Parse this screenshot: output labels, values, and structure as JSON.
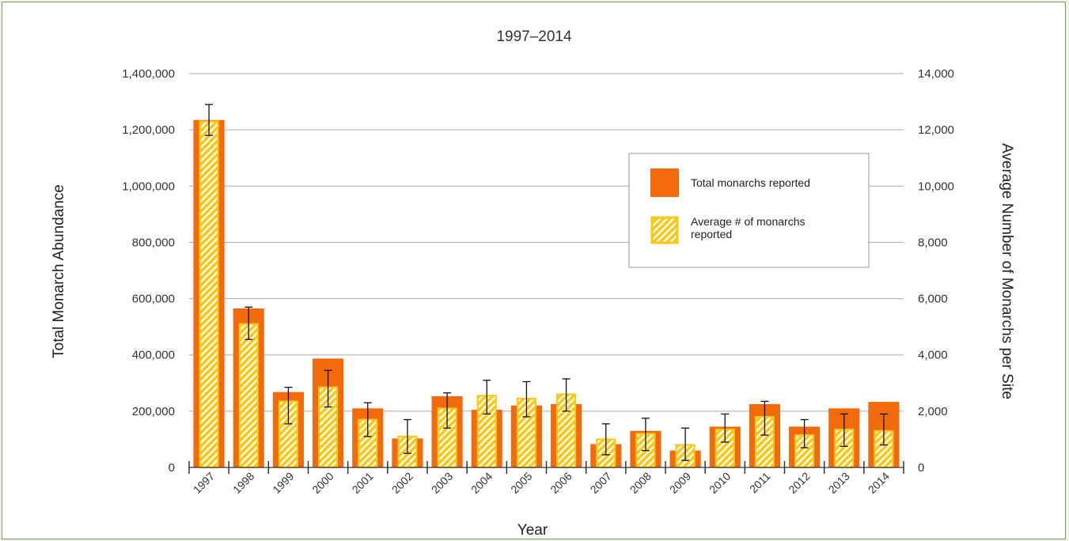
{
  "chart_data": {
    "type": "bar",
    "title": "1997–2014",
    "xlabel": "Year",
    "ylabel": "Total Monarch Abundance",
    "y2label": "Average Number of Monarchs per Site",
    "categories": [
      "1997",
      "1998",
      "1999",
      "2000",
      "2001",
      "2002",
      "2003",
      "2004",
      "2005",
      "2006",
      "2007",
      "2008",
      "2009",
      "2010",
      "2011",
      "2012",
      "2013",
      "2014"
    ],
    "ylim": [
      0,
      1400000
    ],
    "y2lim": [
      0,
      14000
    ],
    "yticks": [
      "0",
      "200,000",
      "400,000",
      "600,000",
      "800,000",
      "1,000,000",
      "1,200,000",
      "1,400,000"
    ],
    "y2ticks": [
      "0",
      "2,000",
      "4,000",
      "6,000",
      "8,000",
      "10,000",
      "12,000",
      "14,000"
    ],
    "grid": true,
    "legend_position": "top-right",
    "series": [
      {
        "name": "Total monarchs reported",
        "axis": "left",
        "color": "#f26a0a",
        "values": [
          1235000,
          565000,
          268000,
          387000,
          210000,
          103000,
          253000,
          205000,
          220000,
          225000,
          83000,
          130000,
          60000,
          145000,
          225000,
          145000,
          210000,
          233000
        ]
      },
      {
        "name": "Average # of monarchs reported",
        "axis": "right",
        "color": "#fbc710",
        "pattern": "hatched",
        "values": [
          12300,
          5100,
          2350,
          2850,
          1700,
          1100,
          2100,
          2550,
          2450,
          2600,
          1000,
          1200,
          800,
          1350,
          1800,
          1150,
          1350,
          1300
        ],
        "error_low": [
          11800,
          4550,
          1550,
          2150,
          1100,
          500,
          1400,
          1900,
          1800,
          2000,
          450,
          600,
          250,
          900,
          1150,
          700,
          750,
          800
        ],
        "error_high": [
          12900,
          5700,
          2850,
          3450,
          2300,
          1700,
          2650,
          3100,
          3050,
          3150,
          1550,
          1750,
          1400,
          1900,
          2350,
          1700,
          1900,
          1900
        ]
      }
    ]
  }
}
